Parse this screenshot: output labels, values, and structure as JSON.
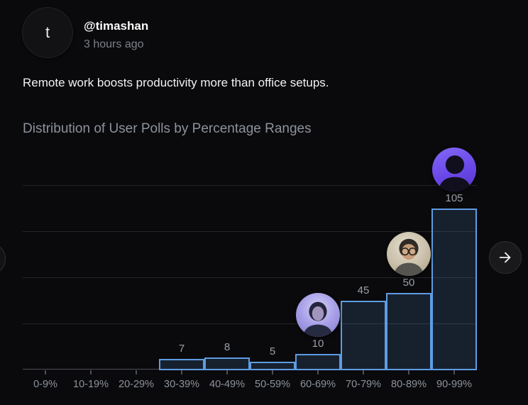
{
  "post": {
    "avatar_letter": "t",
    "username": "@timashan",
    "time_ago": "3 hours ago",
    "text": "Remote work boosts productivity more than office setups."
  },
  "chart_data": {
    "type": "bar",
    "title": "Distribution of User Polls by Percentage Ranges",
    "categories": [
      "0-9%",
      "10-19%",
      "20-29%",
      "30-39%",
      "40-49%",
      "50-59%",
      "60-69%",
      "70-79%",
      "80-89%",
      "90-99%"
    ],
    "values": [
      0,
      0,
      0,
      7,
      8,
      5,
      10,
      45,
      50,
      105
    ],
    "xlabel": "",
    "ylabel": "",
    "ylim": [
      0,
      120
    ],
    "gridline_values": [
      30,
      60,
      90,
      120
    ],
    "grid": true,
    "legend": "none",
    "value_labels_shown": true,
    "bar_border_color": "#5f9ce2",
    "bar_fill_color": "rgba(95,156,226,0.16)",
    "avatars": [
      {
        "category": "60-69%",
        "style": "lavender",
        "alt": "woman-portrait-avatar"
      },
      {
        "category": "80-89%",
        "style": "beige",
        "alt": "man-glasses-avatar"
      },
      {
        "category": "90-99%",
        "style": "violet",
        "alt": "man-silhouette-avatar"
      }
    ]
  },
  "nav": {
    "next_icon": "arrow-right",
    "prev_icon": "arrow-left-partial"
  },
  "colors": {
    "background": "#0a0a0c",
    "accent_blue": "#5f9ce2",
    "accent_violet": "#6a48e8",
    "muted_text": "#8d939c"
  }
}
